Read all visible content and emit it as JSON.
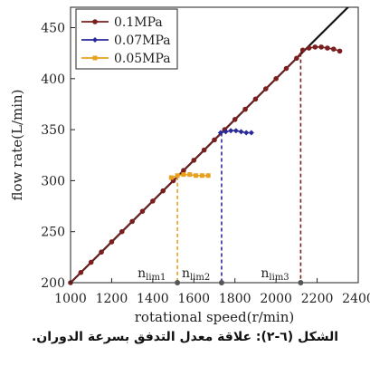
{
  "chart_data": {
    "type": "line",
    "xlabel": "rotational speed(r/min)",
    "ylabel": "flow rate(L/min)",
    "xlim": [
      1000,
      2400
    ],
    "ylim": [
      200,
      470
    ],
    "xticks": [
      "1000",
      "1200",
      "1400",
      "1600",
      "1800",
      "2000",
      "2200",
      "2400"
    ],
    "yticks": [
      "200",
      "250",
      "300",
      "350",
      "400",
      "450"
    ],
    "legend_position": "top-left",
    "grid": false,
    "series": [
      {
        "name": "0.1MPa",
        "color": "#7a1f1f",
        "marker": "circle",
        "x": [
          1000,
          1050,
          1100,
          1150,
          1200,
          1250,
          1300,
          1350,
          1400,
          1450,
          1500,
          1550,
          1600,
          1650,
          1700,
          1750,
          1800,
          1850,
          1900,
          1950,
          2000,
          2050,
          2100,
          2130,
          2160,
          2190,
          2220,
          2250,
          2280,
          2310
        ],
        "y": [
          200,
          210,
          220,
          230,
          240,
          250,
          260,
          270,
          280,
          290,
          300,
          310,
          320,
          330,
          340,
          350,
          360,
          370,
          380,
          390,
          400,
          410,
          420,
          428,
          430,
          431,
          431,
          430,
          429,
          427
        ]
      },
      {
        "name": "0.07MPa",
        "color": "#2a2a9a",
        "marker": "diamond",
        "x": [
          1730,
          1755,
          1780,
          1805,
          1830,
          1855,
          1880
        ],
        "y": [
          347,
          348,
          349,
          349,
          348,
          347,
          347
        ]
      },
      {
        "name": "0.05MPa",
        "color": "#e8a020",
        "marker": "square",
        "x": [
          1490,
          1520,
          1550,
          1580,
          1610,
          1640,
          1670
        ],
        "y": [
          303,
          305,
          306,
          306,
          305,
          305,
          305
        ]
      }
    ],
    "reference_line": {
      "x": [
        1000,
        2400
      ],
      "y": [
        200,
        480
      ],
      "color": "#111111"
    },
    "annotations": [
      {
        "label": "n",
        "sub": "lim1",
        "x": 1520,
        "y": 304,
        "color": "#e8a020"
      },
      {
        "label": "n",
        "sub": "lim2",
        "x": 1735,
        "y": 347,
        "color": "#2a2a9a"
      },
      {
        "label": "n",
        "sub": "lim3",
        "x": 2120,
        "y": 425,
        "color": "#7a1f1f"
      }
    ]
  },
  "caption": "الشكل (٦-٢): علاقة معدل التدفق بسرعة الدوران."
}
